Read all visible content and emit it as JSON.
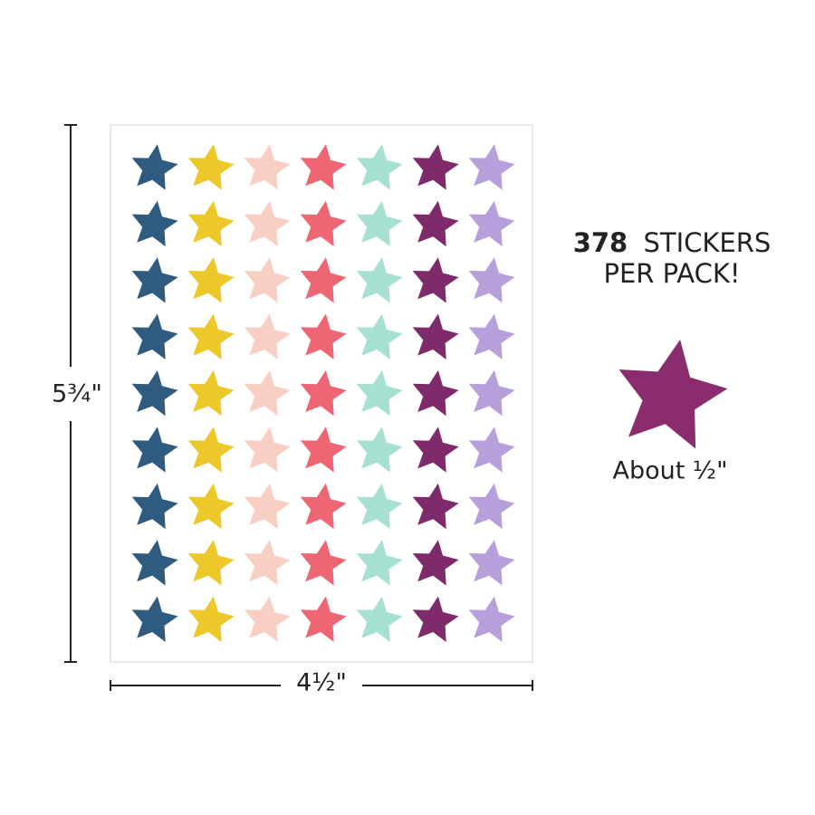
{
  "dimensions": {
    "height": "5¾\"",
    "width": "4½\""
  },
  "promo": {
    "count": "378",
    "line1": "STICKERS",
    "line2": "PER PACK!"
  },
  "sample": {
    "size": "About ½\""
  }
}
